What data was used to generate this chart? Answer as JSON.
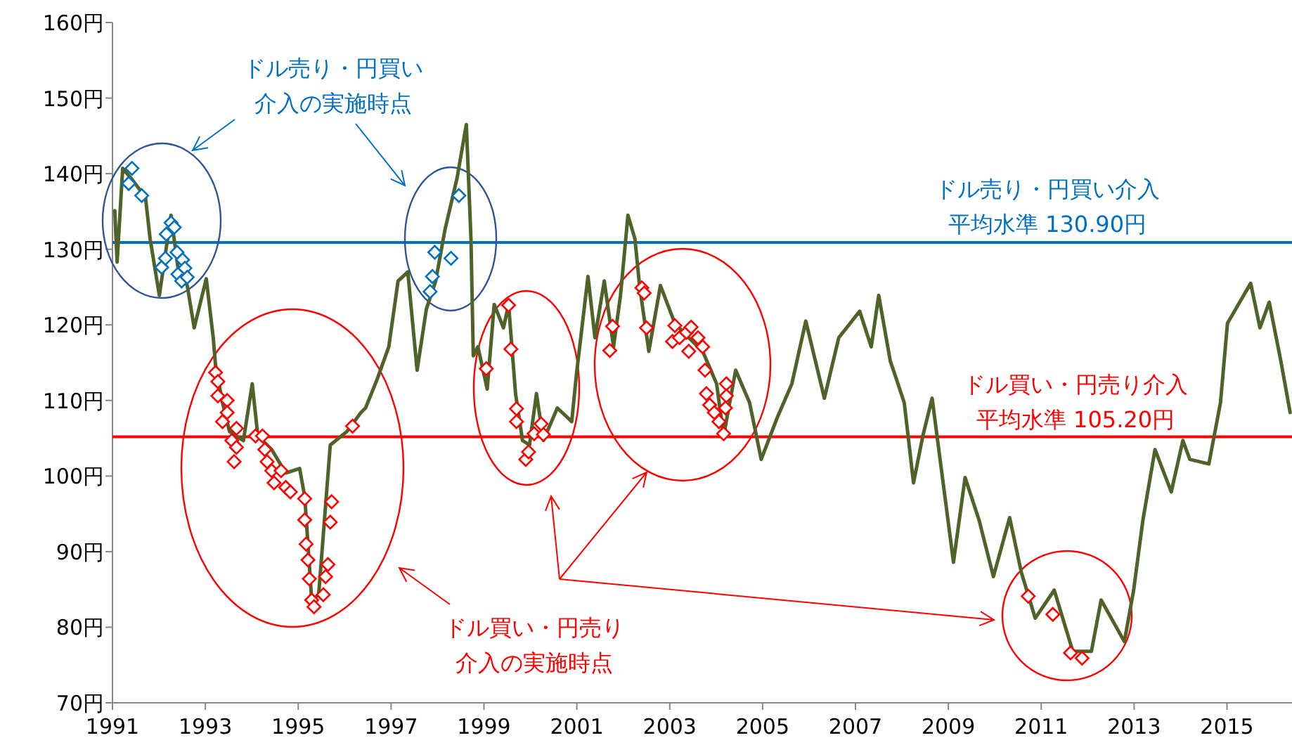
{
  "chart_data": {
    "type": "line",
    "xlim": [
      1991,
      2016.4
    ],
    "xticks": [
      1991,
      1993,
      1995,
      1997,
      1999,
      2001,
      2003,
      2005,
      2007,
      2009,
      2011,
      2013,
      2015
    ],
    "ylim": [
      70,
      160
    ],
    "yticks": [
      {
        "value": 70,
        "label": "70円"
      },
      {
        "value": 80,
        "label": "80円"
      },
      {
        "value": 90,
        "label": "90円"
      },
      {
        "value": 100,
        "label": "100円"
      },
      {
        "value": 110,
        "label": "110円"
      },
      {
        "value": 120,
        "label": "120円"
      },
      {
        "value": 130,
        "label": "130円"
      },
      {
        "value": 140,
        "label": "140円"
      },
      {
        "value": 150,
        "label": "150円"
      },
      {
        "value": 160,
        "label": "160円"
      }
    ],
    "grid": false,
    "series": [
      {
        "color": "#4f6228",
        "x": [
          1991.05,
          1991.1,
          1991.22,
          1991.4,
          1991.71,
          1991.81,
          1992.01,
          1992.26,
          1992.41,
          1992.61,
          1992.76,
          1993.02,
          1993.17,
          1993.22,
          1993.37,
          1993.52,
          1993.82,
          1994.01,
          1994.13,
          1994.43,
          1994.73,
          1995.03,
          1995.14,
          1995.29,
          1995.44,
          1995.69,
          1996.05,
          1996.35,
          1996.45,
          1996.7,
          1996.95,
          1997.15,
          1997.36,
          1997.56,
          1997.76,
          1997.96,
          1998.16,
          1998.42,
          1998.62,
          1998.72,
          1998.77,
          1998.87,
          1999.07,
          1999.22,
          1999.42,
          1999.53,
          1999.68,
          1999.83,
          1999.98,
          2000.13,
          2000.28,
          2000.58,
          2000.89,
          2000.99,
          2001.24,
          2001.39,
          2001.59,
          2001.79,
          2001.94,
          2002.1,
          2002.25,
          2002.35,
          2002.55,
          2002.8,
          2003.11,
          2003.41,
          2003.71,
          2004.01,
          2004.16,
          2004.42,
          2004.72,
          2004.97,
          2005.32,
          2005.63,
          2005.93,
          2006.33,
          2006.64,
          2007.09,
          2007.34,
          2007.5,
          2007.75,
          2007.85,
          2008.05,
          2008.25,
          2008.45,
          2008.65,
          2008.86,
          2009.11,
          2009.36,
          2009.66,
          2009.97,
          2010.32,
          2010.57,
          2010.87,
          2011.28,
          2011.68,
          2012.08,
          2012.29,
          2012.79,
          2012.99,
          2013.19,
          2013.45,
          2013.8,
          2014.05,
          2014.2,
          2014.61,
          2014.86,
          2015.01,
          2015.51,
          2015.71,
          2015.91,
          2016.16,
          2016.36
        ],
        "values": [
          135.1,
          128.3,
          140.7,
          139.4,
          136.9,
          131.4,
          123.9,
          134.5,
          127.6,
          125.2,
          119.6,
          126.1,
          118.3,
          114.6,
          109.7,
          105.9,
          104.7,
          112.2,
          105.3,
          103.5,
          100.4,
          101.0,
          97.3,
          83.6,
          84.3,
          104.1,
          105.9,
          108.4,
          109.0,
          112.8,
          117.1,
          125.8,
          127.0,
          114.0,
          122.1,
          125.8,
          132.6,
          139.4,
          146.5,
          131.4,
          115.9,
          117.1,
          111.5,
          122.7,
          119.6,
          122.7,
          110.9,
          104.7,
          104.1,
          110.9,
          104.7,
          109.0,
          107.2,
          113.4,
          126.4,
          118.3,
          125.8,
          117.1,
          123.9,
          134.5,
          131.4,
          125.2,
          116.5,
          125.2,
          120.2,
          118.3,
          116.5,
          112.2,
          105.3,
          114.0,
          109.7,
          102.2,
          107.8,
          112.2,
          120.5,
          110.3,
          118.3,
          121.8,
          117.1,
          123.9,
          115.2,
          113.4,
          109.7,
          99.1,
          105.3,
          110.3,
          100.4,
          88.6,
          99.8,
          94.2,
          86.7,
          94.5,
          87.3,
          81.2,
          84.9,
          76.8,
          76.8,
          83.6,
          78.1,
          84.9,
          94.2,
          103.5,
          97.9,
          104.7,
          102.2,
          101.6,
          109.7,
          120.2,
          125.5,
          119.6,
          123.0,
          115.2,
          108.4
        ]
      },
      {
        "type": "scatter",
        "marker": "diamond",
        "color": "#0070c0",
        "x": [
          1991.35,
          1991.42,
          1991.63,
          1992.06,
          1992.14,
          1992.16,
          1992.26,
          1992.33,
          1992.39,
          1992.41,
          1992.49,
          1992.51,
          1992.56,
          1992.61,
          1997.84,
          1997.89,
          1997.94,
          1998.29,
          1998.46
        ],
        "values": [
          138.7,
          140.7,
          137.1,
          127.6,
          128.8,
          132.0,
          133.5,
          132.9,
          129.6,
          126.7,
          125.8,
          128.6,
          127.5,
          126.3,
          124.4,
          126.4,
          129.6,
          128.8,
          137.1
        ]
      },
      {
        "type": "scatter",
        "marker": "diamond",
        "color": "#ff0000",
        "x": [
          1993.22,
          1993.27,
          1993.27,
          1993.37,
          1993.47,
          1993.47,
          1993.57,
          1993.62,
          1993.67,
          1993.67,
          1994.08,
          1994.23,
          1994.28,
          1994.33,
          1994.43,
          1994.48,
          1994.63,
          1994.73,
          1994.83,
          1995.14,
          1995.14,
          1995.17,
          1995.21,
          1995.24,
          1995.29,
          1995.34,
          1995.54,
          1995.59,
          1995.64,
          1995.69,
          1995.72,
          1996.17,
          1999.05,
          1999.53,
          1999.58,
          1999.7,
          1999.7,
          1999.9,
          1999.96,
          2000.08,
          2000.23,
          2000.28,
          2001.71,
          2001.77,
          2002.4,
          2002.45,
          2002.5,
          2003.06,
          2003.11,
          2003.21,
          2003.36,
          2003.41,
          2003.46,
          2003.61,
          2003.71,
          2003.76,
          2003.79,
          2003.86,
          2003.96,
          2004.06,
          2004.16,
          2004.2,
          2004.22,
          2004.22,
          2010.72,
          2011.25,
          2011.63,
          2011.88
        ],
        "values": [
          113.7,
          112.5,
          110.6,
          107.2,
          110.0,
          108.4,
          104.7,
          101.9,
          106.3,
          103.8,
          105.3,
          105.3,
          103.5,
          101.9,
          100.7,
          99.1,
          100.7,
          98.5,
          97.9,
          97.0,
          94.2,
          91.0,
          88.9,
          86.4,
          83.6,
          82.7,
          84.3,
          86.7,
          88.3,
          93.9,
          96.6,
          106.6,
          114.2,
          122.6,
          116.8,
          108.9,
          107.2,
          102.2,
          103.2,
          105.6,
          106.9,
          105.5,
          116.6,
          119.8,
          124.9,
          124.2,
          119.6,
          117.8,
          119.9,
          118.3,
          119.0,
          116.5,
          119.7,
          118.3,
          117.1,
          114.0,
          110.9,
          109.4,
          108.4,
          107.2,
          105.6,
          109.0,
          112.2,
          110.6,
          84.1,
          81.7,
          76.6,
          75.9
        ]
      }
    ],
    "ref_lines": [
      {
        "axis": "y",
        "value": 130.9,
        "label": "ドル売り・円買い介入平均水準  130.90円",
        "color": "#0070c0"
      },
      {
        "axis": "y",
        "value": 105.2,
        "label": "ドル買い・円売り介入平均水準  105.20円",
        "color": "#ff0000"
      }
    ],
    "annotations": [
      "ドル売り・円買い介入の実施時点",
      "ドル買い・円売り介入の実施時点"
    ]
  }
}
